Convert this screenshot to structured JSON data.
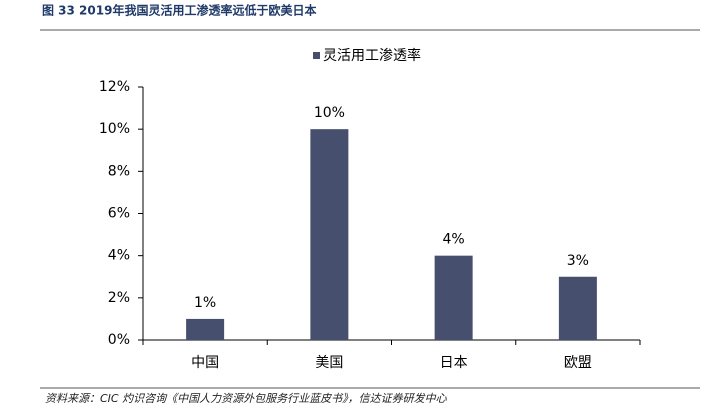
{
  "chart_data": {
    "type": "bar",
    "title": "图 33 2019年我国灵活用工渗透率远低于欧美日本",
    "source": "资料来源：CIC 灼识咨询《中国人力资源外包服务行业蓝皮书》，信达证券研发中心",
    "categories": [
      "中国",
      "美国",
      "日本",
      "欧盟"
    ],
    "series": [
      {
        "name": "灵活用工渗透率",
        "color": "#474f6e",
        "values": [
          1,
          10,
          4,
          3
        ],
        "value_labels": [
          "1%",
          "10%",
          "4%",
          "3%"
        ]
      }
    ],
    "ylim": [
      0,
      12
    ],
    "yticks": [
      {
        "value": 0,
        "label": "0%"
      },
      {
        "value": 2,
        "label": "2%"
      },
      {
        "value": 4,
        "label": "4%"
      },
      {
        "value": 6,
        "label": "6%"
      },
      {
        "value": 8,
        "label": "8%"
      },
      {
        "value": 10,
        "label": "10%"
      },
      {
        "value": 12,
        "label": "12%"
      }
    ],
    "grid": false
  }
}
